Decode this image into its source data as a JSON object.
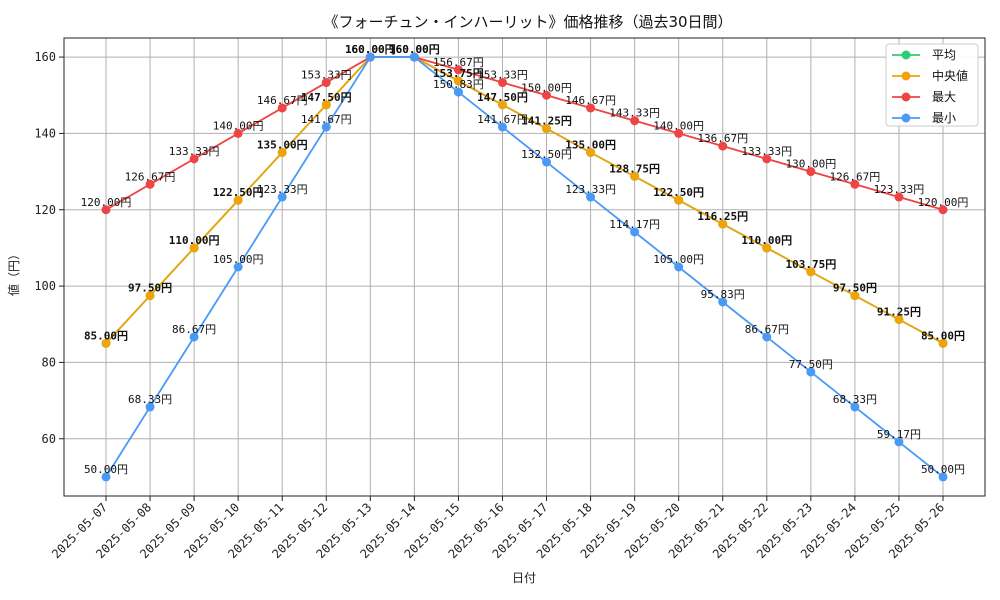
{
  "chart_data": {
    "type": "line",
    "title": "《フォーチュン・インハーリット》価格推移（過去30日間）",
    "xlabel": "日付",
    "ylabel": "値（円）",
    "ylim": [
      45,
      165
    ],
    "yticks": [
      60,
      80,
      100,
      120,
      140,
      160
    ],
    "grid": true,
    "legend_position": "top-right",
    "value_suffix": "円",
    "categories": [
      "2025-05-07",
      "2025-05-08",
      "2025-05-09",
      "2025-05-10",
      "2025-05-11",
      "2025-05-12",
      "2025-05-13",
      "2025-05-14",
      "2025-05-15",
      "2025-05-16",
      "2025-05-17",
      "2025-05-18",
      "2025-05-19",
      "2025-05-20",
      "2025-05-21",
      "2025-05-22",
      "2025-05-23",
      "2025-05-24",
      "2025-05-25",
      "2025-05-26"
    ],
    "series": [
      {
        "name": "平均",
        "color": "#2ecc71",
        "labeled": false,
        "values": [
          85.0,
          97.5,
          110.0,
          122.5,
          135.0,
          147.5,
          160.0,
          160.0,
          153.75,
          147.5,
          141.25,
          135.0,
          128.75,
          122.5,
          116.25,
          110.0,
          103.75,
          97.5,
          91.25,
          85.0
        ]
      },
      {
        "name": "中央値",
        "color": "#f0a30a",
        "labeled": true,
        "bold": true,
        "values": [
          85.0,
          97.5,
          110.0,
          122.5,
          135.0,
          147.5,
          160.0,
          160.0,
          153.75,
          147.5,
          141.25,
          135.0,
          128.75,
          122.5,
          116.25,
          110.0,
          103.75,
          97.5,
          91.25,
          85.0
        ]
      },
      {
        "name": "最大",
        "color": "#ef4444",
        "labeled": true,
        "values": [
          120.0,
          126.67,
          133.33,
          140.0,
          146.67,
          153.33,
          160.0,
          160.0,
          156.67,
          153.33,
          150.0,
          146.67,
          143.33,
          140.0,
          136.67,
          133.33,
          130.0,
          126.67,
          123.33,
          120.0
        ]
      },
      {
        "name": "最小",
        "color": "#4a9af5",
        "labeled": true,
        "values": [
          50.0,
          68.33,
          86.67,
          105.0,
          123.33,
          141.67,
          160.0,
          160.0,
          150.83,
          141.67,
          132.5,
          123.33,
          114.17,
          105.0,
          95.83,
          86.67,
          77.5,
          68.33,
          59.17,
          50.0
        ]
      }
    ]
  }
}
